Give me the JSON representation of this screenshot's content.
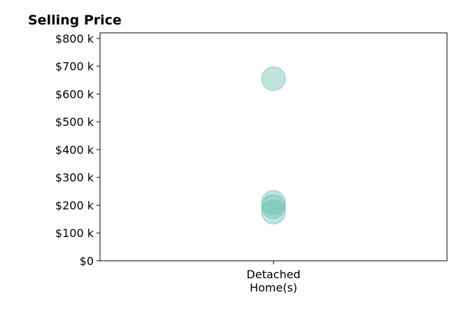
{
  "chart_data": {
    "type": "scatter",
    "title": "Selling Price",
    "xlabel": "",
    "ylabel": "",
    "categories": [
      [
        "Detached",
        "Home(s)"
      ]
    ],
    "y_ticks": [
      "$0",
      "$100 k",
      "$200 k",
      "$300 k",
      "$400 k",
      "$500 k",
      "$600 k",
      "$700 k",
      "$800 k"
    ],
    "ylim": [
      0,
      820000
    ],
    "series": [
      {
        "category_index": 0,
        "values": [
          655000,
          210000,
          195000,
          175000
        ]
      }
    ],
    "grid": false,
    "legend": "none",
    "colors": {
      "point": "#66bfb0",
      "point_edge": "#5fb8a8",
      "axis": "#000000"
    }
  }
}
